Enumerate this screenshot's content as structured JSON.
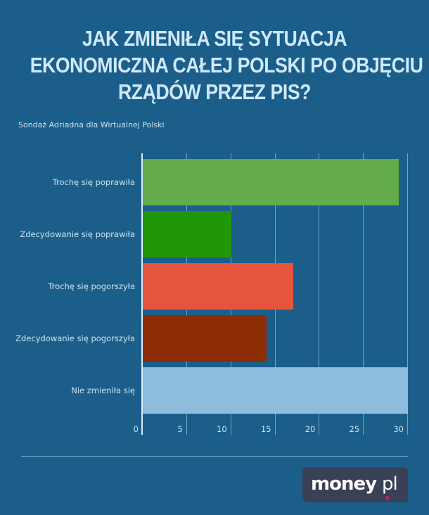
{
  "title": {
    "line1": "JAK ZMIENIŁA SIĘ SYTUACJA",
    "line2": "EKONOMICZNA CAŁEJ POLSKI PO OBJĘCIU",
    "line3": "RZĄDÓW PRZEZ PIS?"
  },
  "subtitle": "Sondaż Adriadna dla Wirtualnej Polski",
  "logo": {
    "main": "money",
    "suffix": "pl"
  },
  "chart_data": {
    "type": "bar",
    "orientation": "horizontal",
    "title": "JAK ZMIENIŁA SIĘ SYTUACJA EKONOMICZNA CAŁEJ POLSKI PO OBJĘCIU RZĄDÓW PRZEZ PIS?",
    "subtitle": "Sondaż Adriadna dla Wirtualnej Polski",
    "categories": [
      "Trochę się poprawiła",
      "Zdecydowanie się poprawiła",
      "Trochę się pogorszyła",
      "Zdecydowanie się pogorszyła",
      "Nie zmieniła się"
    ],
    "values": [
      29,
      10,
      17,
      14,
      30
    ],
    "colors": [
      "#63ab4b",
      "#209709",
      "#e8553d",
      "#8d2d05",
      "#8dbcdc"
    ],
    "xlabel": "",
    "ylabel": "",
    "xlim": [
      0,
      30
    ],
    "xticks": [
      "0",
      "5",
      "10",
      "15",
      "20",
      "25",
      "30"
    ],
    "grid": true,
    "legend": "none"
  }
}
